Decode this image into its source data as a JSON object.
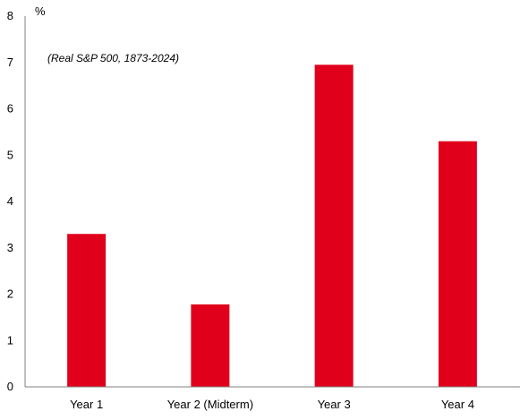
{
  "chart_data": {
    "type": "bar",
    "title": "",
    "subtitle": "(Real S&P 500, 1873-2024)",
    "y_unit_label": "%",
    "xlabel": "",
    "ylabel": "",
    "categories": [
      "Year 1",
      "Year 2 (Midterm)",
      "Year 3",
      "Year 4"
    ],
    "values": [
      3.3,
      1.78,
      6.95,
      5.3
    ],
    "ylim": [
      0,
      8
    ],
    "yticks": [
      "0",
      "1",
      "2",
      "3",
      "4",
      "5",
      "6",
      "7",
      "8"
    ],
    "grid": false,
    "legend": "none",
    "bar_color": "#E0001B",
    "axis_color": "#808080"
  }
}
